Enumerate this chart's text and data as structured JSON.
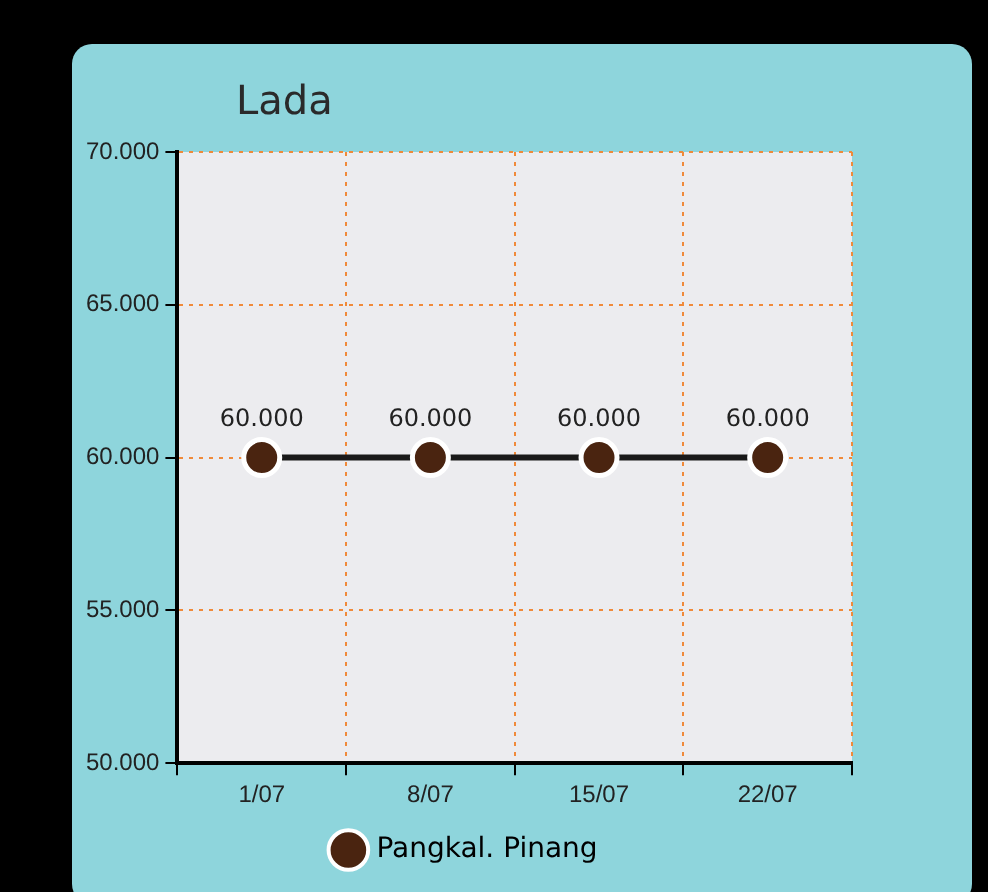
{
  "chart_data": {
    "type": "line",
    "title": "Lada",
    "categories": [
      "1/07",
      "8/07",
      "15/07",
      "22/07"
    ],
    "series": [
      {
        "name": "Pangkal. Pinang",
        "color": "#4a2410",
        "values": [
          60000,
          60000,
          60000,
          60000
        ],
        "value_labels": [
          "60.000",
          "60.000",
          "60.000",
          "60.000"
        ]
      }
    ],
    "ylim": [
      50000,
      70000
    ],
    "yticks": [
      {
        "value": 50000,
        "label": "50.000"
      },
      {
        "value": 55000,
        "label": "55.000"
      },
      {
        "value": 60000,
        "label": "60.000"
      },
      {
        "value": 65000,
        "label": "65.000"
      },
      {
        "value": 70000,
        "label": "70.000"
      }
    ],
    "grid": true,
    "legend": "bottom",
    "marker": "circle",
    "line_style": "solid"
  }
}
